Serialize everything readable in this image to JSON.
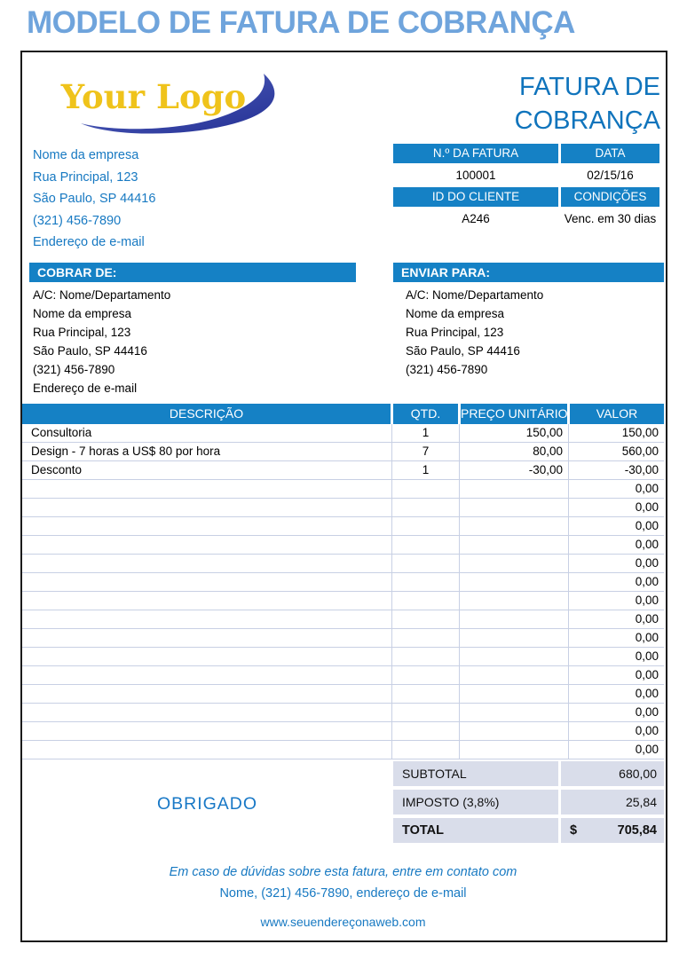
{
  "page_title": "MODELO DE FATURA DE COBRANÇA",
  "logo": {
    "text": "Your Logo"
  },
  "doc_title": {
    "line1": "FATURA DE",
    "line2": "COBRANÇA"
  },
  "company": {
    "lines": [
      "Nome da empresa",
      "Rua Principal, 123",
      "São Paulo, SP 44416",
      "(321) 456-7890",
      "Endereço de e-mail"
    ]
  },
  "meta": {
    "invoice_no_label": "N.º DA FATURA",
    "invoice_no": "100001",
    "date_label": "DATA",
    "date": "02/15/16",
    "client_id_label": "ID DO CLIENTE",
    "client_id": "A246",
    "terms_label": "CONDIÇÕES",
    "terms": "Venc. em 30 dias"
  },
  "bill_to": {
    "title": "COBRAR DE:",
    "lines": [
      "A/C: Nome/Departamento",
      "Nome da empresa",
      "Rua Principal, 123",
      "São Paulo, SP 44416",
      "(321) 456-7890",
      "Endereço de e-mail"
    ]
  },
  "ship_to": {
    "title": "ENVIAR PARA:",
    "lines": [
      "A/C: Nome/Departamento",
      "Nome da empresa",
      "Rua Principal, 123",
      "São Paulo, SP 44416",
      "(321) 456-7890"
    ]
  },
  "items_table": {
    "headers": [
      "DESCRIÇÃO",
      "QTD.",
      "PREÇO UNITÁRIO",
      "VALOR"
    ],
    "rows": [
      {
        "description": "Consultoria",
        "qty": "1",
        "unit_price": "150,00",
        "amount": "150,00"
      },
      {
        "description": "Design - 7 horas a US$ 80 por hora",
        "qty": "7",
        "unit_price": "80,00",
        "amount": "560,00"
      },
      {
        "description": "Desconto",
        "qty": "1",
        "unit_price": "-30,00",
        "amount": "-30,00"
      }
    ],
    "empty_row_count": 15,
    "empty_row_amount": "0,00"
  },
  "summary": {
    "subtotal_label": "SUBTOTAL",
    "subtotal": "680,00",
    "tax_label": "IMPOSTO (3,8%)",
    "tax": "25,84",
    "total_label": "TOTAL",
    "currency": "$",
    "total": "705,84"
  },
  "thanks": "OBRIGADO",
  "footer": {
    "line1": "Em caso de dúvidas sobre esta fatura, entre em contato com",
    "line2": "Nome, (321) 456-7890, endereço de e-mail",
    "website": "www.seuendereçonaweb.com"
  },
  "colors": {
    "title_blue": "#6FA4DC",
    "bar_blue": "#1581C5",
    "text_blue": "#1779C2",
    "summary_bg": "#D9DDEA",
    "grid_line": "#C8D0E4",
    "logo_gold": "#EFC31B",
    "swoosh_blue": "#2E3C9C"
  }
}
